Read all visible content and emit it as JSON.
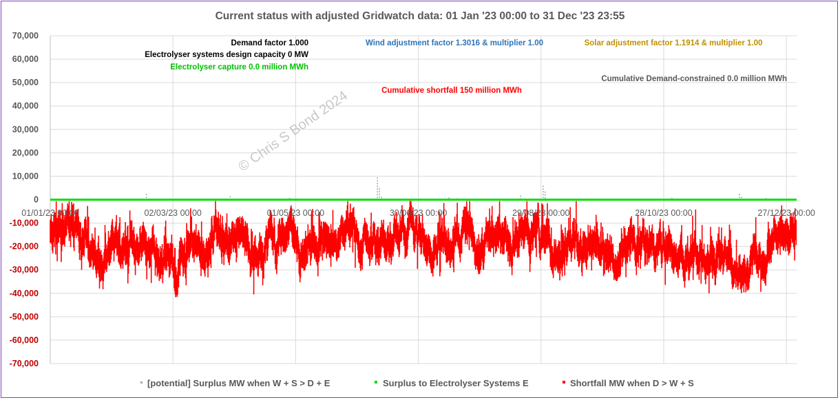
{
  "chart_data": {
    "type": "scatter",
    "title": "Current status with adjusted Gridwatch data: 01 Jan '23 00:00 to 31 Dec '23 23:55",
    "x_tick_labels": [
      "01/01/23 00:00",
      "02/03/23 00:00",
      "01/05/23 00:00",
      "30/06/23 00:00",
      "29/08/23 00:00",
      "28/10/23 00:00",
      "27/12/23 00:00"
    ],
    "x_range_days": [
      0,
      365
    ],
    "x_tick_days": [
      0,
      60,
      120,
      180,
      240,
      300,
      360
    ],
    "y_range": [
      -70000,
      70000
    ],
    "y_ticks": [
      70000,
      60000,
      50000,
      40000,
      30000,
      20000,
      10000,
      0,
      -10000,
      -20000,
      -30000,
      -40000,
      -50000,
      -60000,
      -70000
    ],
    "y_tick_labels": [
      "70,000",
      "60,000",
      "50,000",
      "40,000",
      "30,000",
      "20,000",
      "10,000",
      "0",
      "-10,000",
      "-20,000",
      "-30,000",
      "-40,000",
      "-50,000",
      "-60,000",
      "-70,000"
    ],
    "grid": true,
    "legend_position": "bottom",
    "series": [
      {
        "name": "[potential] Surplus MW when W + S > D + E",
        "color": "#a6a6a6",
        "points": [
          [
            47,
            2500
          ],
          [
            88,
            1500
          ],
          [
            117,
            800
          ],
          [
            160,
            9500
          ],
          [
            161,
            5000
          ],
          [
            162,
            1200
          ],
          [
            195,
            1000
          ],
          [
            199,
            600
          ],
          [
            230,
            1800
          ],
          [
            241,
            6000
          ],
          [
            242,
            3500
          ],
          [
            285,
            500
          ],
          [
            304,
            800
          ],
          [
            337,
            2500
          ],
          [
            338,
            1200
          ],
          [
            350,
            700
          ]
        ]
      },
      {
        "name": "Surplus to Electrolyser Systems E",
        "color": "#00e000",
        "value": 0
      },
      {
        "name": "Shortfall MW when D > W + S",
        "color": "#ff0000",
        "profile": [
          [
            0,
            -14000
          ],
          [
            8,
            -12000
          ],
          [
            14,
            -15000
          ],
          [
            20,
            -24000
          ],
          [
            26,
            -26000
          ],
          [
            32,
            -22000
          ],
          [
            40,
            -20000
          ],
          [
            48,
            -22000
          ],
          [
            56,
            -26000
          ],
          [
            62,
            -28000
          ],
          [
            70,
            -22000
          ],
          [
            78,
            -18000
          ],
          [
            86,
            -16000
          ],
          [
            94,
            -19000
          ],
          [
            100,
            -22000
          ],
          [
            108,
            -20000
          ],
          [
            116,
            -18000
          ],
          [
            124,
            -22000
          ],
          [
            132,
            -19000
          ],
          [
            140,
            -17000
          ],
          [
            148,
            -18000
          ],
          [
            156,
            -19000
          ],
          [
            164,
            -17000
          ],
          [
            172,
            -16000
          ],
          [
            180,
            -15000
          ],
          [
            188,
            -16000
          ],
          [
            196,
            -17000
          ],
          [
            204,
            -16000
          ],
          [
            212,
            -18000
          ],
          [
            220,
            -17000
          ],
          [
            228,
            -19000
          ],
          [
            236,
            -18000
          ],
          [
            244,
            -21000
          ],
          [
            252,
            -20000
          ],
          [
            260,
            -19000
          ],
          [
            268,
            -18000
          ],
          [
            276,
            -21000
          ],
          [
            284,
            -20000
          ],
          [
            292,
            -19000
          ],
          [
            300,
            -18000
          ],
          [
            308,
            -22000
          ],
          [
            316,
            -25000
          ],
          [
            324,
            -22000
          ],
          [
            332,
            -26000
          ],
          [
            338,
            -32000
          ],
          [
            342,
            -30000
          ],
          [
            348,
            -21000
          ],
          [
            356,
            -14000
          ],
          [
            365,
            -12000
          ]
        ],
        "amplitude": 8000
      }
    ],
    "annotations": [
      {
        "text": "Demand factor 1.000",
        "color": "#000000"
      },
      {
        "text": "Electrolyser systems design capacity 0 MW",
        "color": "#000000"
      },
      {
        "text": "Electrolyser capture 0.0 million MWh",
        "color": "#00c000"
      },
      {
        "text": "Wind adjustment factor 1.3016 & multiplier 1.00",
        "color": "#2e75b6"
      },
      {
        "text": "Solar adjustment factor 1.1914 & multiplier 1.00",
        "color": "#c09000"
      },
      {
        "text": "Cumulative Demand-constrained 0.0 million MWh",
        "color": "#595959"
      },
      {
        "text": "Cumulative shortfall 150 million MWh",
        "color": "#ff0000"
      }
    ],
    "watermark": "© Chris S Bond  2024"
  }
}
